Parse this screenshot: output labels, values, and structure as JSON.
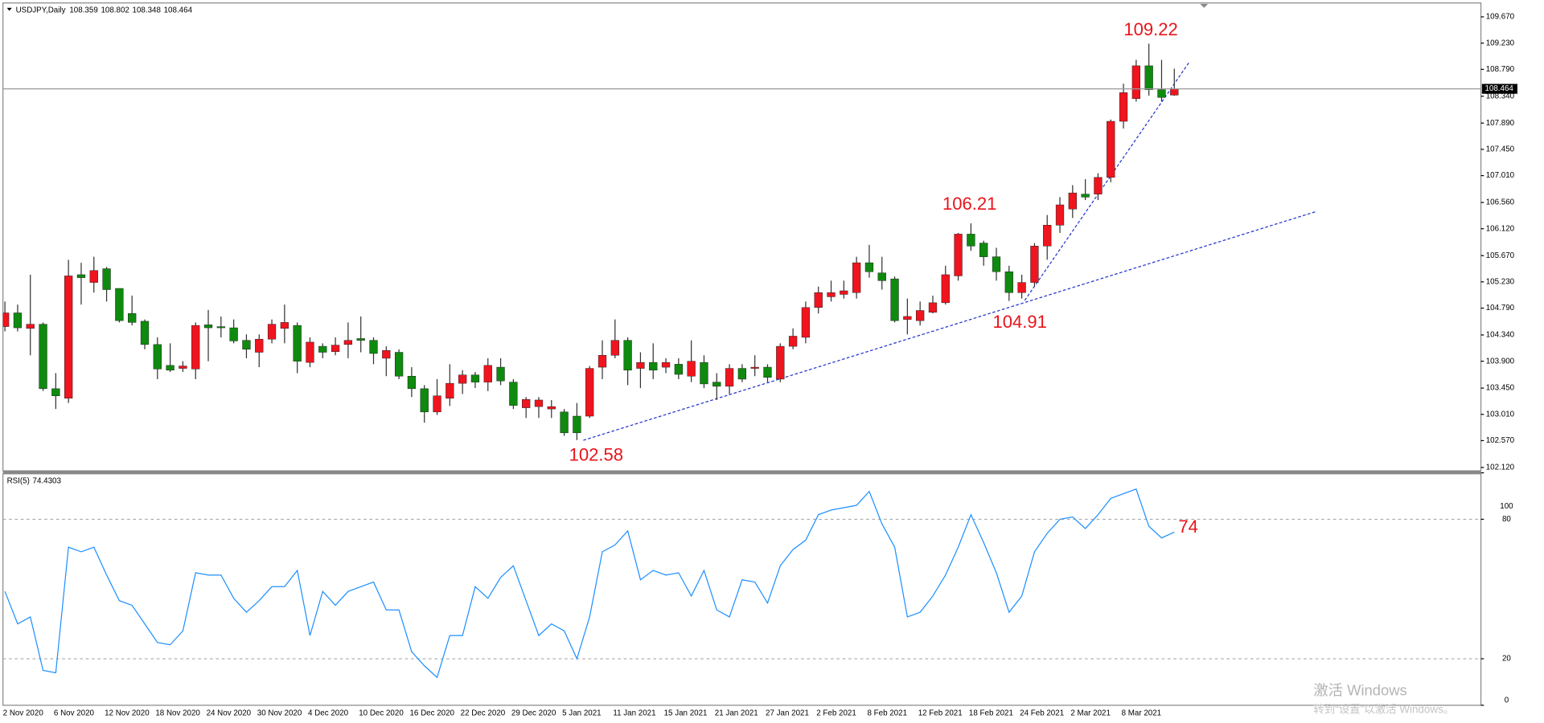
{
  "chart_data": [
    {
      "type": "candlestick",
      "title": "USDJPY,Daily",
      "up_color": "#f0141e",
      "down_color": "#0e8a0e",
      "wick_color": "#333333",
      "categories": [
        "2 Nov 2020",
        null,
        null,
        null,
        "6 Nov 2020",
        null,
        null,
        null,
        "12 Nov 2020",
        null,
        null,
        null,
        "18 Nov 2020",
        null,
        null,
        null,
        "24 Nov 2020",
        null,
        null,
        null,
        "30 Nov 2020",
        null,
        null,
        null,
        "4 Dec 2020",
        null,
        null,
        null,
        "10 Dec 2020",
        null,
        null,
        null,
        "16 Dec 2020",
        null,
        null,
        null,
        "22 Dec 2020",
        null,
        null,
        null,
        "29 Dec 2020",
        null,
        null,
        null,
        "5 Jan 2021",
        null,
        null,
        null,
        "11 Jan 2021",
        null,
        null,
        null,
        "15 Jan 2021",
        null,
        null,
        null,
        "21 Jan 2021",
        null,
        null,
        null,
        "27 Jan 2021",
        null,
        null,
        null,
        "2 Feb 2021",
        null,
        null,
        null,
        "8 Feb 2021",
        null,
        null,
        null,
        "12 Feb 2021",
        null,
        null,
        null,
        "18 Feb 2021",
        null,
        null,
        null,
        "24 Feb 2021",
        null,
        null,
        null,
        "2 Mar 2021",
        null,
        null,
        null,
        "8 Mar 2021",
        null,
        null,
        null,
        null
      ],
      "open": [
        104.48,
        104.71,
        104.45,
        104.52,
        103.44,
        103.28,
        105.35,
        105.22,
        105.45,
        105.12,
        104.7,
        104.57,
        104.18,
        103.83,
        103.78,
        103.77,
        104.51,
        104.48,
        104.46,
        104.25,
        104.05,
        104.27,
        104.45,
        104.5,
        103.88,
        104.15,
        104.06,
        104.18,
        104.28,
        104.25,
        103.95,
        104.05,
        103.65,
        103.44,
        103.05,
        103.28,
        103.53,
        103.67,
        103.55,
        103.8,
        103.55,
        103.12,
        103.14,
        103.1,
        103.05,
        102.98,
        102.98,
        103.8,
        104.0,
        104.25,
        103.78,
        103.88,
        103.8,
        103.85,
        103.65,
        103.88,
        103.55,
        103.48,
        103.78,
        103.78,
        103.8,
        103.6,
        104.15,
        104.3,
        104.8,
        104.98,
        105.02,
        105.05,
        105.55,
        105.38,
        105.28,
        104.6,
        104.58,
        104.72,
        104.88,
        105.33,
        106.03,
        105.88,
        105.65,
        105.4,
        105.05,
        105.22,
        105.83,
        106.18,
        106.45,
        106.7,
        106.7,
        106.98,
        107.92,
        108.3,
        108.85,
        108.45,
        108.359
      ],
      "high": [
        104.9,
        104.85,
        105.35,
        104.55,
        103.7,
        105.6,
        105.55,
        105.65,
        105.48,
        105.12,
        105.0,
        104.6,
        104.3,
        104.2,
        103.9,
        104.55,
        104.76,
        104.65,
        104.6,
        104.35,
        104.35,
        104.6,
        104.85,
        104.55,
        104.3,
        104.2,
        104.3,
        104.55,
        104.65,
        104.3,
        104.15,
        104.1,
        103.8,
        103.5,
        103.6,
        103.85,
        103.75,
        103.72,
        103.95,
        103.95,
        103.6,
        103.3,
        103.3,
        103.25,
        103.1,
        103.2,
        103.82,
        104.25,
        104.6,
        104.3,
        104.05,
        104.2,
        103.95,
        103.95,
        104.25,
        104.0,
        103.7,
        103.85,
        103.85,
        104.0,
        103.85,
        104.2,
        104.45,
        104.9,
        105.15,
        105.25,
        105.25,
        105.65,
        105.85,
        105.65,
        105.32,
        104.95,
        104.9,
        105.0,
        105.5,
        106.05,
        106.21,
        105.92,
        105.8,
        105.5,
        105.35,
        105.88,
        106.35,
        106.65,
        106.85,
        106.95,
        107.05,
        107.95,
        108.55,
        108.95,
        109.22,
        108.95,
        108.802
      ],
      "low": [
        104.4,
        104.4,
        104.0,
        103.4,
        103.1,
        103.2,
        104.85,
        105.05,
        104.9,
        104.55,
        104.5,
        104.1,
        103.6,
        103.72,
        103.72,
        103.6,
        103.9,
        104.3,
        104.2,
        103.95,
        103.8,
        104.2,
        104.2,
        103.7,
        103.8,
        103.95,
        104.0,
        103.95,
        104.05,
        103.85,
        103.65,
        103.6,
        103.3,
        102.87,
        103.0,
        103.15,
        103.35,
        103.45,
        103.4,
        103.5,
        103.1,
        102.95,
        102.95,
        102.95,
        102.65,
        102.58,
        102.95,
        103.6,
        103.95,
        103.5,
        103.45,
        103.6,
        103.7,
        103.6,
        103.55,
        103.45,
        103.25,
        103.35,
        103.55,
        103.65,
        103.55,
        103.55,
        104.1,
        104.2,
        104.7,
        104.9,
        104.95,
        104.95,
        105.3,
        105.1,
        104.55,
        104.35,
        104.5,
        104.7,
        104.85,
        105.25,
        105.75,
        105.5,
        105.25,
        104.91,
        104.95,
        105.15,
        105.6,
        106.05,
        106.3,
        106.6,
        106.6,
        106.9,
        107.8,
        108.25,
        108.35,
        108.25,
        108.348
      ],
      "close": [
        104.71,
        104.46,
        104.52,
        103.44,
        103.32,
        105.33,
        105.3,
        105.42,
        105.1,
        104.58,
        104.55,
        104.18,
        103.77,
        103.75,
        103.82,
        104.5,
        104.46,
        104.46,
        104.24,
        104.1,
        104.27,
        104.52,
        104.55,
        103.9,
        104.22,
        104.05,
        104.17,
        104.25,
        104.25,
        104.03,
        104.08,
        103.65,
        103.44,
        103.05,
        103.32,
        103.53,
        103.67,
        103.55,
        103.83,
        103.57,
        103.16,
        103.26,
        103.25,
        103.14,
        102.7,
        102.7,
        103.78,
        104.0,
        104.25,
        103.75,
        103.88,
        103.75,
        103.88,
        103.68,
        103.9,
        103.52,
        103.48,
        103.78,
        103.6,
        103.8,
        103.63,
        104.15,
        104.32,
        104.8,
        105.05,
        105.05,
        105.08,
        105.55,
        105.4,
        105.25,
        104.58,
        104.65,
        104.75,
        104.88,
        105.35,
        106.03,
        105.83,
        105.65,
        105.4,
        105.05,
        105.22,
        105.83,
        106.18,
        106.52,
        106.72,
        106.65,
        106.98,
        107.92,
        108.4,
        108.85,
        108.45,
        108.32,
        108.464
      ],
      "ylim": [
        102.08,
        109.87
      ],
      "yticks": [
        {
          "value": 109.67,
          "label": "109.670"
        },
        {
          "value": 109.23,
          "label": "109.230"
        },
        {
          "value": 108.79,
          "label": "108.790"
        },
        {
          "value": 108.34,
          "label": "108.340"
        },
        {
          "value": 107.89,
          "label": "107.890"
        },
        {
          "value": 107.45,
          "label": "107.450"
        },
        {
          "value": 107.01,
          "label": "107.010"
        },
        {
          "value": 106.56,
          "label": "106.560"
        },
        {
          "value": 106.12,
          "label": "106.120"
        },
        {
          "value": 105.67,
          "label": "105.670"
        },
        {
          "value": 105.23,
          "label": "105.230"
        },
        {
          "value": 104.79,
          "label": "104.790"
        },
        {
          "value": 104.34,
          "label": "104.340"
        },
        {
          "value": 103.9,
          "label": "103.900"
        },
        {
          "value": 103.45,
          "label": "103.450"
        },
        {
          "value": 103.01,
          "label": "103.010"
        },
        {
          "value": 102.57,
          "label": "102.570"
        },
        {
          "value": 102.12,
          "label": "102.120"
        }
      ],
      "annotations": [
        "109.22",
        "106.21",
        "104.91",
        "102.58"
      ]
    },
    {
      "type": "line",
      "title": "RSI(5)",
      "color": "#1e90ff",
      "values": [
        49,
        35,
        38,
        15,
        14,
        68,
        66,
        68,
        56,
        45,
        43,
        35,
        27,
        26,
        32,
        57,
        56,
        56,
        46,
        40,
        45,
        51,
        51,
        58,
        30,
        49,
        43,
        49,
        51,
        53,
        41,
        41,
        23,
        17,
        12,
        30,
        30,
        51,
        46,
        55,
        60,
        45,
        30,
        35,
        32,
        20,
        38,
        66,
        69,
        75,
        54,
        58,
        56,
        57,
        47,
        58,
        41,
        38,
        54,
        53,
        44,
        60,
        67,
        71,
        82,
        84,
        85,
        86,
        92,
        78,
        68,
        38,
        40,
        47,
        56,
        68,
        82,
        70,
        57,
        40,
        47,
        66,
        74,
        80,
        81,
        76,
        82,
        89,
        91,
        93,
        77,
        72,
        74.4303
      ],
      "ylim": [
        0,
        100
      ],
      "yticks": [
        0,
        20,
        80,
        100
      ],
      "levels": [
        20,
        80
      ],
      "annotations": [
        "74"
      ]
    }
  ],
  "watermark": {
    "title": "激活 Windows",
    "text": "转到“设置”以激活 Windows。"
  }
}
